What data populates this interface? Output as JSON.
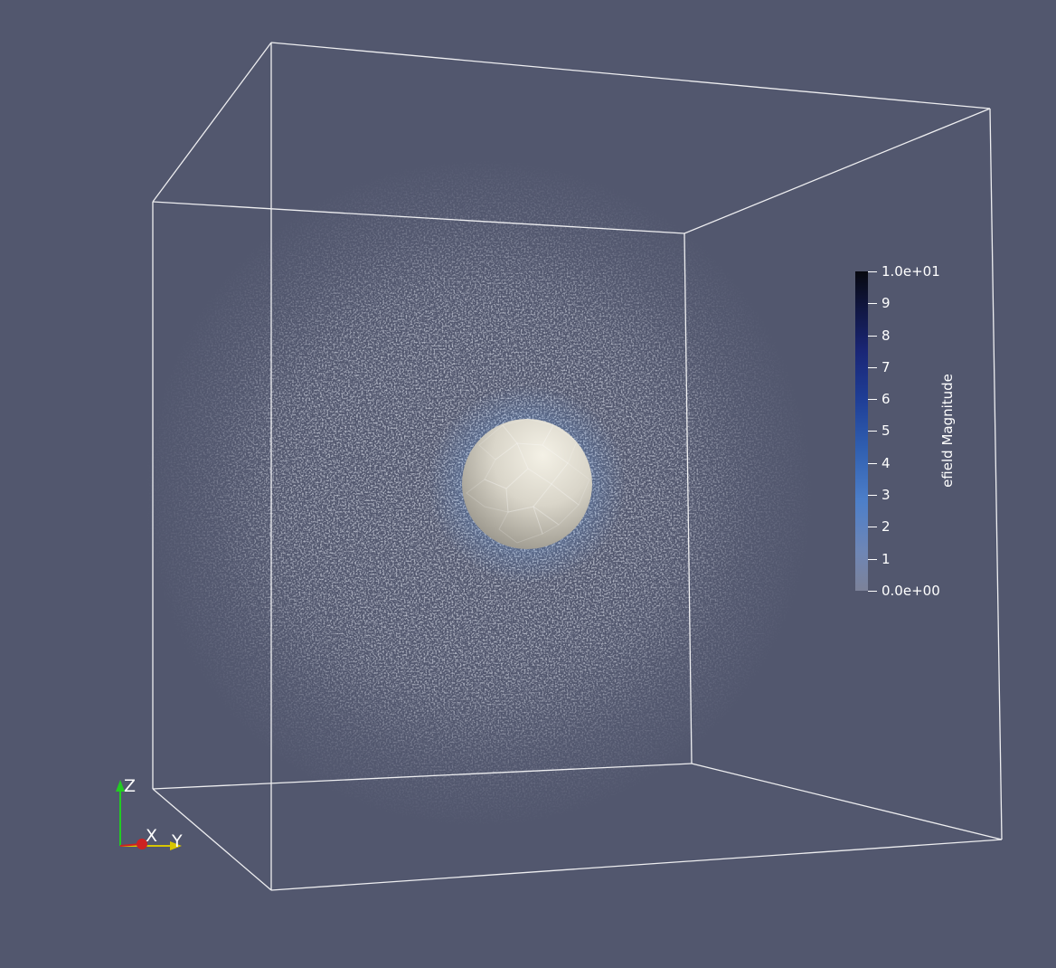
{
  "colorbar": {
    "title": "efield Magnitude",
    "tick_labels": [
      "1.0e+01",
      "9",
      "8",
      "7",
      "6",
      "5",
      "4",
      "3",
      "2",
      "1",
      "0.0e+00"
    ],
    "range": [
      0,
      10
    ],
    "colors": [
      "#7c8299",
      "#4d7fc9",
      "#1f3e96",
      "#07080f"
    ]
  },
  "orientation_axes": {
    "x_label": "X",
    "y_label": "Y",
    "z_label": "Z",
    "x_color": "#cc2222",
    "y_color": "#d8c600",
    "z_color": "#22cc22"
  },
  "scene": {
    "background": "#52576e",
    "outline_color": "#ffffff",
    "sphere_color": "#e8e4d8",
    "field_color": "#6fb0ff"
  }
}
